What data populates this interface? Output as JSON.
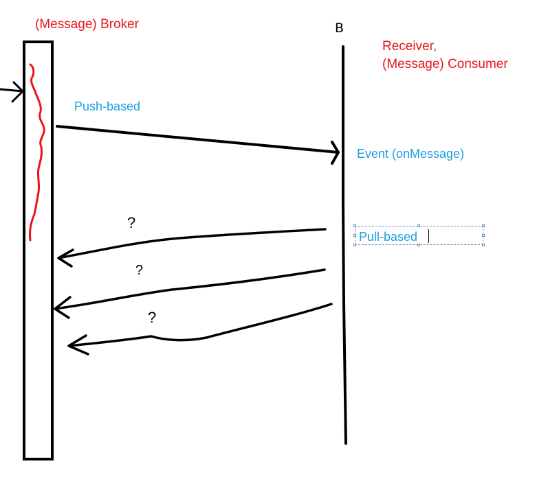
{
  "labels": {
    "broker": "(Message) Broker",
    "b": "B",
    "receiver_line1": "Receiver,",
    "receiver_line2": "(Message) Consumer",
    "push": "Push-based",
    "event": "Event (onMessage)",
    "pull": "Pull-based",
    "question": "?"
  },
  "colors": {
    "red": "#e8141c",
    "blue": "#1c9fe0",
    "black": "#000000",
    "selection": "#6a8bb0"
  }
}
